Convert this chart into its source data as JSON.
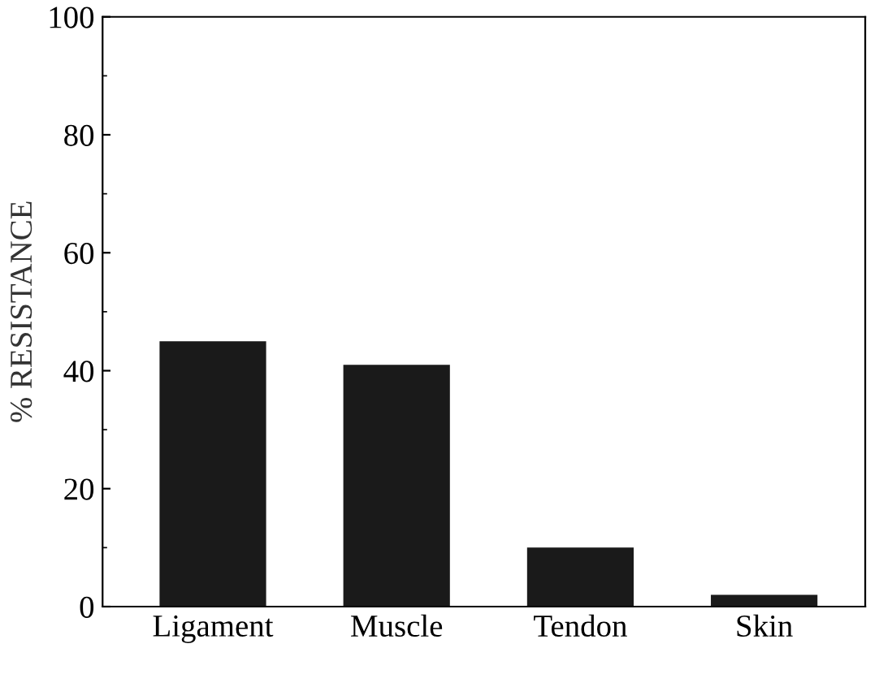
{
  "chart_data": {
    "type": "bar",
    "ylabel": "% RESISTANCE",
    "categories": [
      "Ligament",
      "Muscle",
      "Tendon",
      "Skin"
    ],
    "values": [
      45,
      41,
      10,
      2
    ],
    "color": "#1a1a1a",
    "ylim": [
      0,
      100
    ],
    "yticks": [
      0,
      20,
      40,
      60,
      80,
      100
    ],
    "grid": false
  }
}
